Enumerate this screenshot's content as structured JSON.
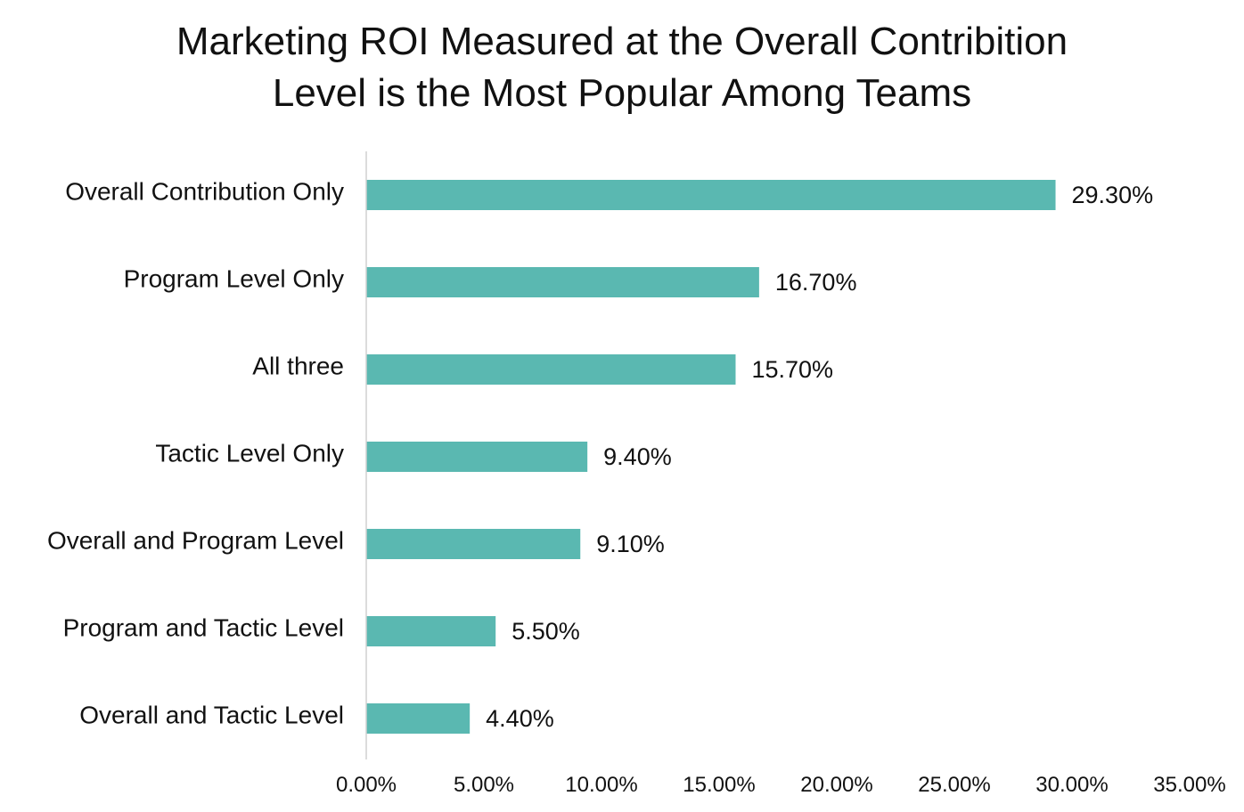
{
  "chart_data": {
    "type": "bar",
    "orientation": "horizontal",
    "title": "Marketing ROI Measured at the Overall Contribition Level is the Most Popular Among Teams",
    "title_lines": [
      "Marketing ROI Measured at the Overall Contribition",
      "Level is the Most Popular Among Teams"
    ],
    "categories": [
      "Overall Contribution Only",
      "Program Level Only",
      "All three",
      "Tactic Level Only",
      "Overall and Program Level",
      "Program and Tactic Level",
      "Overall and Tactic Level"
    ],
    "values": [
      29.3,
      16.7,
      15.7,
      9.4,
      9.1,
      5.5,
      4.4
    ],
    "data_labels": [
      "29.30%",
      "16.70%",
      "15.70%",
      "9.40%",
      "9.10%",
      "5.50%",
      "4.40%"
    ],
    "x_ticks": [
      "0.00%",
      "5.00%",
      "10.00%",
      "15.00%",
      "20.00%",
      "25.00%",
      "30.00%",
      "35.00%"
    ],
    "xlim": [
      0,
      35
    ],
    "xlabel": "",
    "ylabel": "",
    "grid": false,
    "legend": "none",
    "bar_color": "#5ab8b1",
    "axis_color": "#d0d0d0"
  }
}
